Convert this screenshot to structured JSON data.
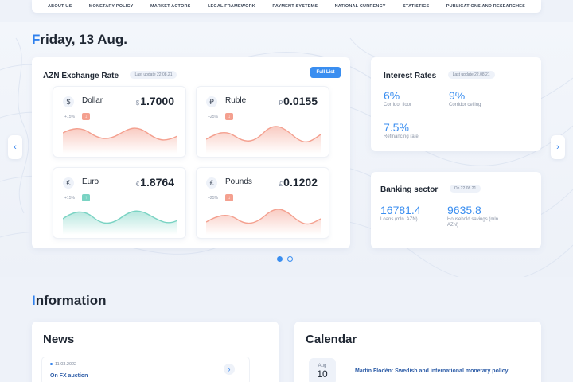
{
  "nav": {
    "items": [
      "ABOUT US",
      "MONETARY POLICY",
      "MARKET ACTORS",
      "LEGAL FRAMEWORK",
      "PAYMENT SYSTEMS",
      "NATIONAL CURRENCY",
      "STATISTICS",
      "PUBLICATIONS AND RESEARCHES"
    ]
  },
  "date_title": {
    "first": "F",
    "rest": "riday, 13 Aug."
  },
  "exchange": {
    "title": "AZN Exchange Rate",
    "update": "Last update 22.08.21",
    "full_list": "Full List",
    "currencies": [
      {
        "icon": "$",
        "name": "Dollar",
        "sym": "$",
        "rate": "1.7000",
        "pct": "+15%",
        "dir": "↓",
        "trend": "down"
      },
      {
        "icon": "₽",
        "name": "Ruble",
        "sym": "₽",
        "rate": "0.0155",
        "pct": "+25%",
        "dir": "↓",
        "trend": "down"
      },
      {
        "icon": "€",
        "name": "Euro",
        "sym": "€",
        "rate": "1.8764",
        "pct": "+15%",
        "dir": "↑",
        "trend": "up"
      },
      {
        "icon": "£",
        "name": "Pounds",
        "sym": "£",
        "rate": "0.1202",
        "pct": "+25%",
        "dir": "↓",
        "trend": "down"
      }
    ]
  },
  "interest": {
    "title": "Interest Rates",
    "update": "Last update 22.08.21",
    "items": [
      {
        "value": "6%",
        "label": "Corridor floor"
      },
      {
        "value": "9%",
        "label": "Corridor ceiling"
      },
      {
        "value": "7.5%",
        "label": "Refinancing rate"
      }
    ]
  },
  "banking": {
    "title": "Banking sector",
    "update": "On 22.08.21",
    "items": [
      {
        "value": "16781.4",
        "label": "Loans (mln. AZN)"
      },
      {
        "value": "9635.8",
        "label": "Household savings (mln. AZN)"
      }
    ]
  },
  "info_title": {
    "first": "I",
    "rest": "nformation"
  },
  "news": {
    "title": "News",
    "item": {
      "date": "11.03.2022",
      "text": "On FX auction"
    }
  },
  "calendar": {
    "title": "Calendar",
    "item": {
      "month": "Aug",
      "day": "10",
      "text": "Martin Flodén: Swedish and international monetary policy"
    }
  },
  "colors": {
    "accent": "#3a8ef0",
    "down": "#f4a08f",
    "up": "#7ad3c3"
  },
  "icons": {
    "prev": "chevron-left-icon",
    "next": "chevron-right-icon",
    "news_arrow": "chevron-right-icon"
  }
}
